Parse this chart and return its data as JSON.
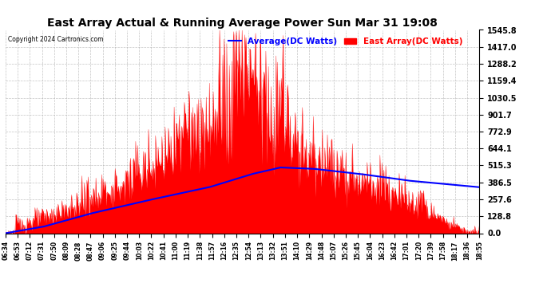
{
  "title": "East Array Actual & Running Average Power Sun Mar 31 19:08",
  "copyright": "Copyright 2024 Cartronics.com",
  "legend_avg": "Average(DC Watts)",
  "legend_east": "East Array(DC Watts)",
  "yticks": [
    0.0,
    128.8,
    257.6,
    386.5,
    515.3,
    644.1,
    772.9,
    901.7,
    1030.5,
    1159.4,
    1288.2,
    1417.0,
    1545.8
  ],
  "ymax": 1545.8,
  "ymin": 0.0,
  "xtick_labels": [
    "06:34",
    "06:53",
    "07:12",
    "07:31",
    "07:50",
    "08:09",
    "08:28",
    "08:47",
    "09:06",
    "09:25",
    "09:44",
    "10:03",
    "10:22",
    "10:41",
    "11:00",
    "11:19",
    "11:38",
    "11:57",
    "12:16",
    "12:35",
    "12:54",
    "13:13",
    "13:32",
    "13:51",
    "14:10",
    "14:29",
    "14:48",
    "15:07",
    "15:26",
    "15:45",
    "16:04",
    "16:23",
    "16:42",
    "17:01",
    "17:20",
    "17:39",
    "17:58",
    "18:17",
    "18:36",
    "18:55"
  ],
  "bg_color": "#ffffff",
  "grid_color": "#aaaaaa",
  "area_color": "#ff0000",
  "line_color": "#0000ff",
  "title_color": "#000000",
  "copyright_color": "#000000",
  "legend_avg_color": "#0000ff",
  "legend_east_color": "#ff0000",
  "avg_line_points_x": [
    0,
    0.08,
    0.18,
    0.3,
    0.43,
    0.52,
    0.58,
    0.65,
    0.75,
    0.85,
    1.0
  ],
  "avg_line_points_y": [
    0,
    50,
    150,
    250,
    350,
    450,
    500,
    490,
    450,
    400,
    350
  ]
}
